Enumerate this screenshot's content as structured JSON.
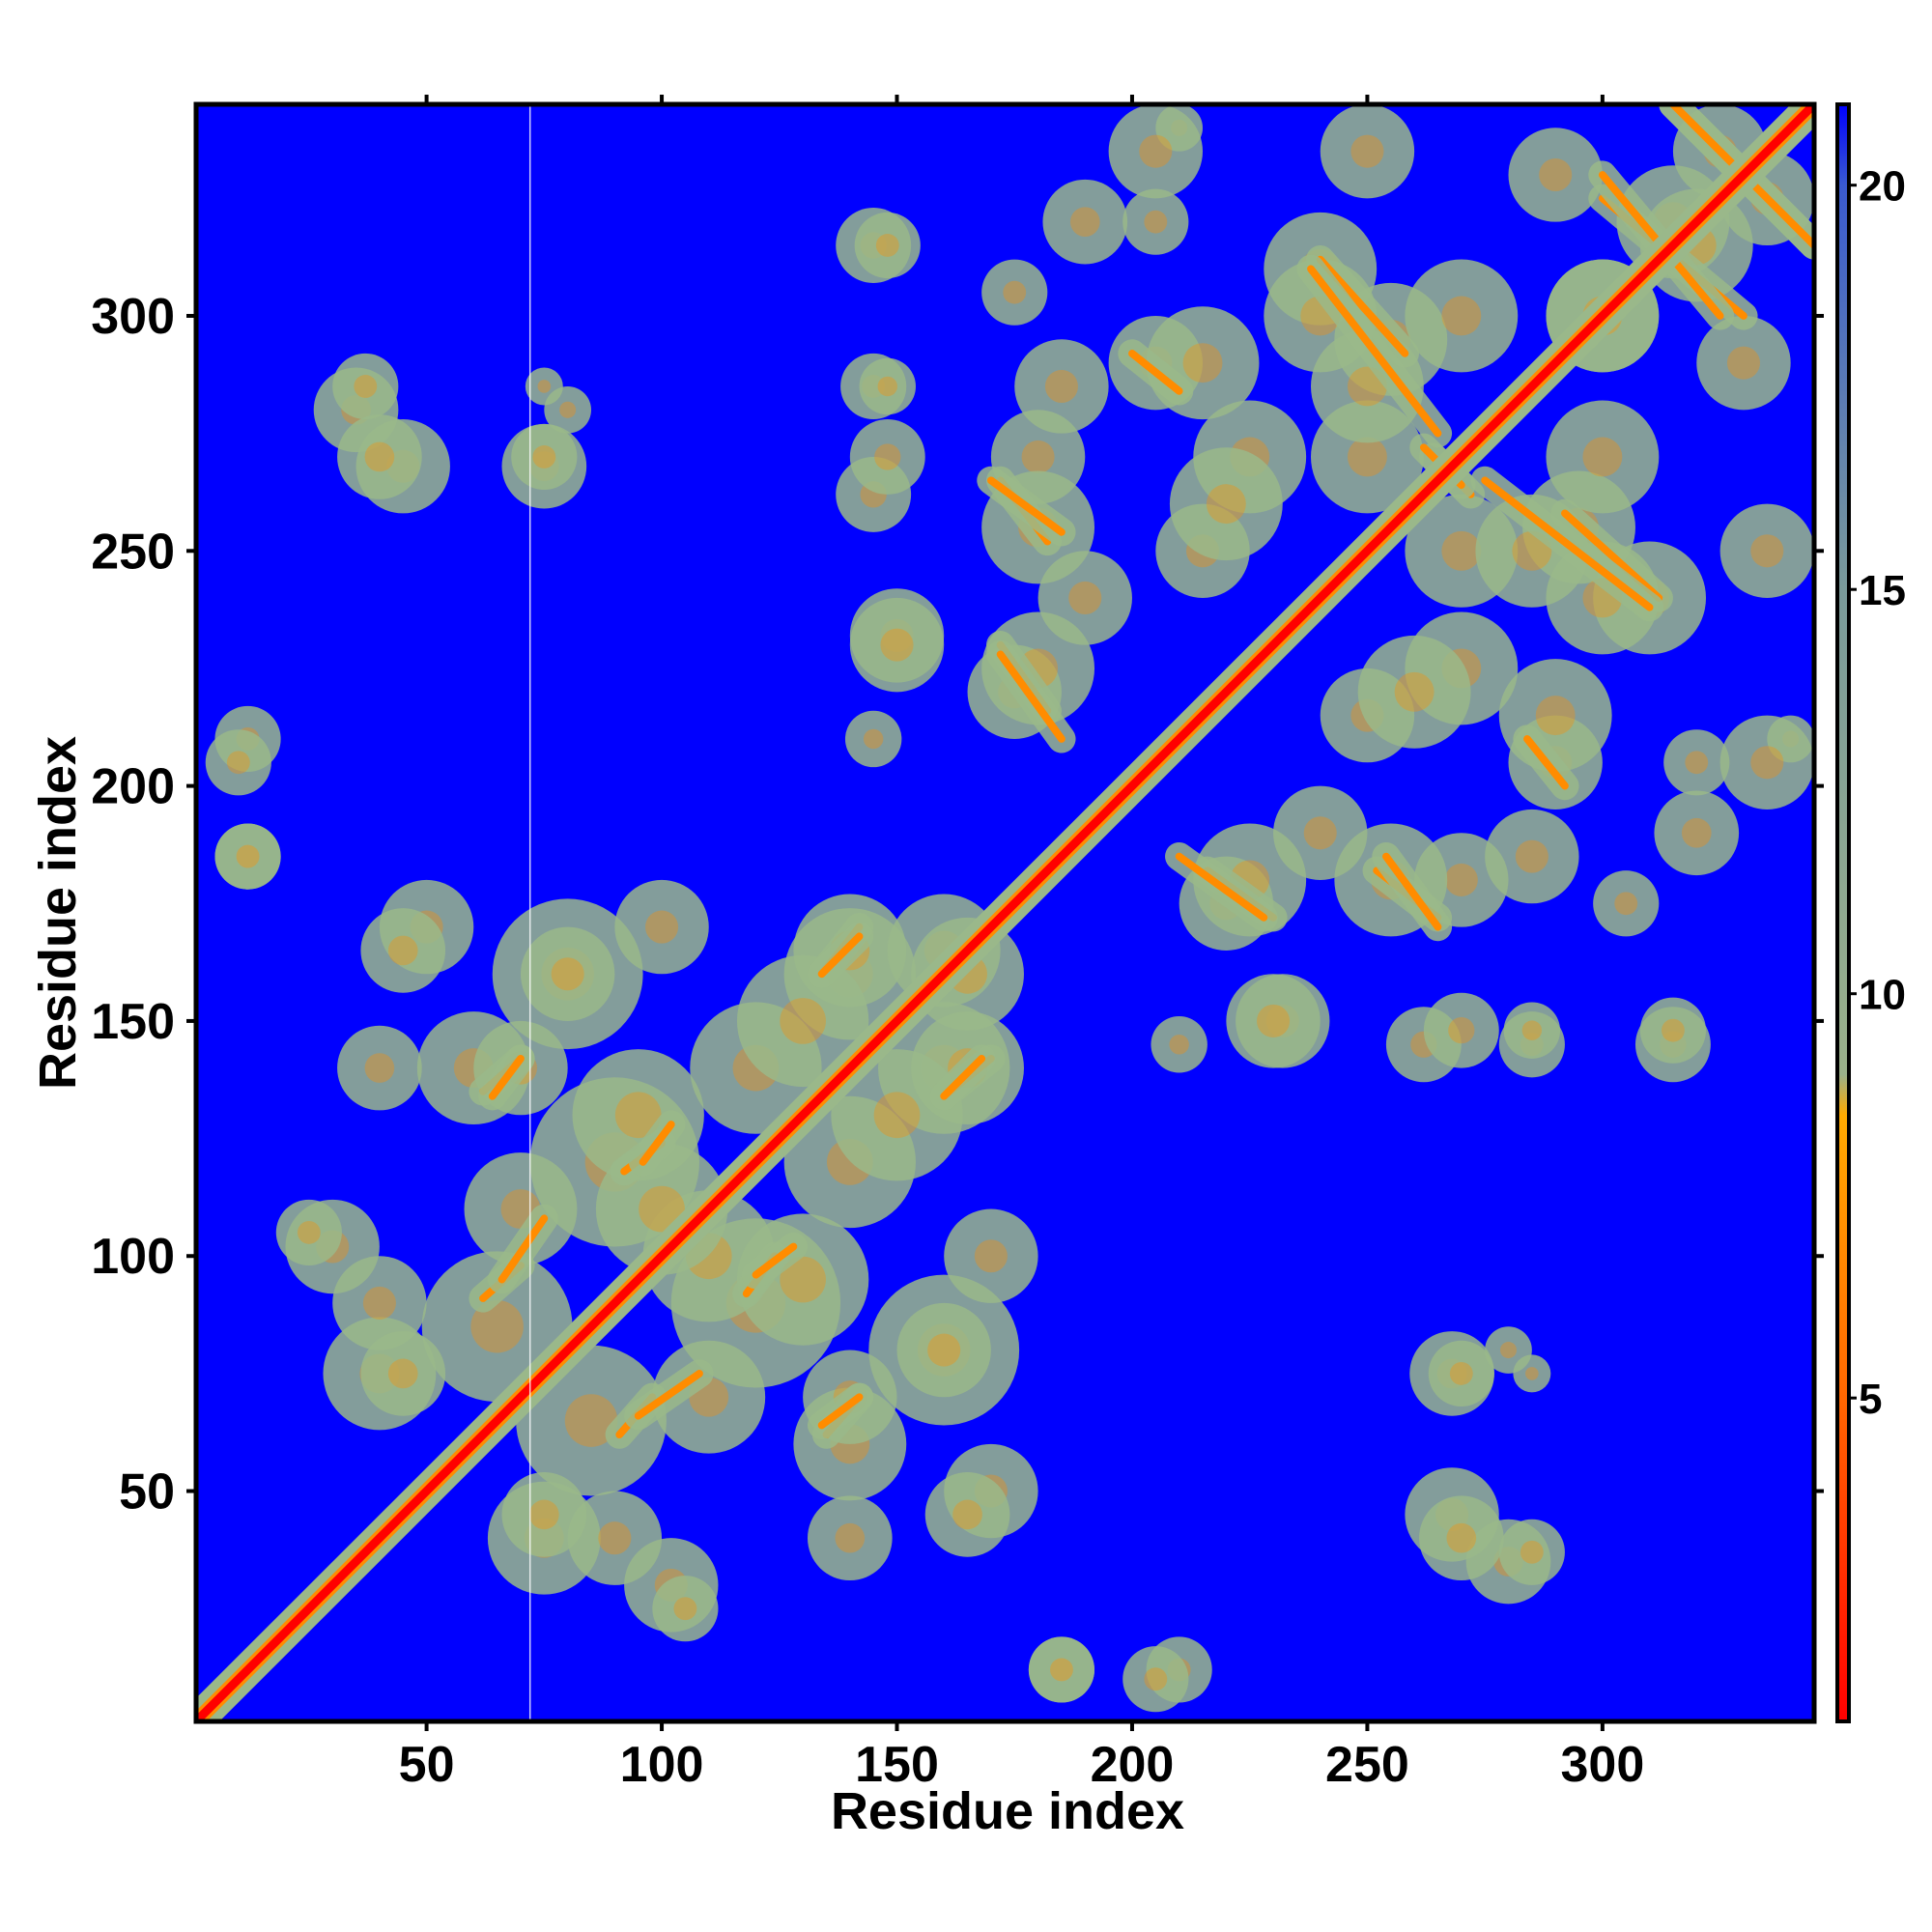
{
  "chart_data": {
    "type": "heatmap",
    "title": "",
    "xlabel": "Residue index",
    "ylabel": "Residue index",
    "xlim": [
      1,
      345
    ],
    "ylim": [
      1,
      345
    ],
    "x_ticks": [
      50,
      100,
      150,
      200,
      250,
      300
    ],
    "y_ticks": [
      50,
      100,
      150,
      200,
      250,
      300
    ],
    "grid": false,
    "legend": "colorbar-right",
    "colorbar": {
      "ticks": [
        5,
        10,
        15,
        20
      ],
      "range": [
        1,
        21
      ],
      "stops": [
        {
          "value": 1,
          "color": "#ff0000"
        },
        {
          "value": 5,
          "color": "#ff6600"
        },
        {
          "value": 8.5,
          "color": "#ffaa00"
        },
        {
          "value": 9,
          "color": "#9ab08a"
        },
        {
          "value": 15,
          "color": "#7a9a9a"
        },
        {
          "value": 20,
          "color": "#3a5ad0"
        },
        {
          "value": 21,
          "color": "#0000ff"
        }
      ]
    },
    "background_color": "#0000ff",
    "diagonal_color": "#ff0000",
    "contact_color": "#9ab88a",
    "highlight_color": "#ff8c00",
    "contact_blobs": [
      {
        "x": 12,
        "y": 210,
        "r": 7
      },
      {
        "x": 12,
        "y": 185,
        "r": 7
      },
      {
        "x": 35,
        "y": 280,
        "r": 9
      },
      {
        "x": 45,
        "y": 268,
        "r": 10
      },
      {
        "x": 80,
        "y": 280,
        "r": 5
      },
      {
        "x": 75,
        "y": 268,
        "r": 9
      },
      {
        "x": 30,
        "y": 102,
        "r": 10
      },
      {
        "x": 60,
        "y": 140,
        "r": 12
      },
      {
        "x": 50,
        "y": 170,
        "r": 10
      },
      {
        "x": 80,
        "y": 160,
        "r": 16
      },
      {
        "x": 100,
        "y": 170,
        "r": 10
      },
      {
        "x": 40,
        "y": 75,
        "r": 12
      },
      {
        "x": 65,
        "y": 85,
        "r": 16
      },
      {
        "x": 90,
        "y": 120,
        "r": 18
      },
      {
        "x": 110,
        "y": 100,
        "r": 14
      },
      {
        "x": 120,
        "y": 140,
        "r": 14
      },
      {
        "x": 130,
        "y": 95,
        "r": 14
      },
      {
        "x": 140,
        "y": 160,
        "r": 14
      },
      {
        "x": 150,
        "y": 130,
        "r": 14
      },
      {
        "x": 160,
        "y": 165,
        "r": 12
      },
      {
        "x": 165,
        "y": 140,
        "r": 12
      },
      {
        "x": 110,
        "y": 70,
        "r": 12
      },
      {
        "x": 140,
        "y": 70,
        "r": 10
      },
      {
        "x": 160,
        "y": 80,
        "r": 10
      },
      {
        "x": 90,
        "y": 40,
        "r": 10
      },
      {
        "x": 105,
        "y": 25,
        "r": 7
      },
      {
        "x": 140,
        "y": 40,
        "r": 9
      },
      {
        "x": 165,
        "y": 45,
        "r": 9
      },
      {
        "x": 75,
        "y": 45,
        "r": 9
      },
      {
        "x": 145,
        "y": 315,
        "r": 8
      },
      {
        "x": 145,
        "y": 285,
        "r": 7
      },
      {
        "x": 145,
        "y": 262,
        "r": 8
      },
      {
        "x": 150,
        "y": 232,
        "r": 10
      },
      {
        "x": 145,
        "y": 210,
        "r": 6
      },
      {
        "x": 175,
        "y": 305,
        "r": 7
      },
      {
        "x": 180,
        "y": 270,
        "r": 10
      },
      {
        "x": 175,
        "y": 220,
        "r": 10
      },
      {
        "x": 190,
        "y": 240,
        "r": 10
      },
      {
        "x": 205,
        "y": 290,
        "r": 10
      },
      {
        "x": 205,
        "y": 320,
        "r": 7
      },
      {
        "x": 210,
        "y": 340,
        "r": 5
      },
      {
        "x": 215,
        "y": 250,
        "r": 10
      },
      {
        "x": 225,
        "y": 270,
        "r": 12
      },
      {
        "x": 240,
        "y": 310,
        "r": 12
      },
      {
        "x": 255,
        "y": 295,
        "r": 12
      },
      {
        "x": 270,
        "y": 250,
        "r": 12
      },
      {
        "x": 260,
        "y": 220,
        "r": 12
      },
      {
        "x": 290,
        "y": 215,
        "r": 12
      },
      {
        "x": 285,
        "y": 250,
        "r": 12
      },
      {
        "x": 300,
        "y": 240,
        "r": 12
      },
      {
        "x": 300,
        "y": 270,
        "r": 12
      },
      {
        "x": 300,
        "y": 300,
        "r": 12
      },
      {
        "x": 315,
        "y": 320,
        "r": 12
      },
      {
        "x": 325,
        "y": 335,
        "r": 10
      },
      {
        "x": 330,
        "y": 290,
        "r": 10
      },
      {
        "x": 335,
        "y": 250,
        "r": 10
      },
      {
        "x": 335,
        "y": 205,
        "r": 10
      },
      {
        "x": 320,
        "y": 190,
        "r": 9
      },
      {
        "x": 225,
        "y": 180,
        "r": 12
      },
      {
        "x": 255,
        "y": 180,
        "r": 12
      },
      {
        "x": 285,
        "y": 185,
        "r": 10
      },
      {
        "x": 230,
        "y": 150,
        "r": 10
      },
      {
        "x": 270,
        "y": 148,
        "r": 8
      },
      {
        "x": 285,
        "y": 148,
        "r": 6
      },
      {
        "x": 315,
        "y": 148,
        "r": 7
      },
      {
        "x": 205,
        "y": 10,
        "r": 7
      },
      {
        "x": 185,
        "y": 12,
        "r": 7
      },
      {
        "x": 270,
        "y": 40,
        "r": 9
      },
      {
        "x": 285,
        "y": 37,
        "r": 7
      },
      {
        "x": 270,
        "y": 75,
        "r": 7
      },
      {
        "x": 285,
        "y": 75,
        "r": 4
      }
    ],
    "contact_streaks": [
      {
        "x1": 62,
        "y1": 135,
        "x2": 70,
        "y2": 142
      },
      {
        "x1": 62,
        "y1": 91,
        "x2": 70,
        "y2": 98
      },
      {
        "x1": 92,
        "y1": 118,
        "x2": 100,
        "y2": 124
      },
      {
        "x1": 95,
        "y1": 66,
        "x2": 108,
        "y2": 75
      },
      {
        "x1": 120,
        "y1": 96,
        "x2": 128,
        "y2": 102
      },
      {
        "x1": 134,
        "y1": 160,
        "x2": 142,
        "y2": 170
      },
      {
        "x1": 134,
        "y1": 64,
        "x2": 142,
        "y2": 70
      },
      {
        "x1": 160,
        "y1": 134,
        "x2": 168,
        "y2": 142
      },
      {
        "x1": 172,
        "y1": 265,
        "x2": 182,
        "y2": 252
      },
      {
        "x1": 172,
        "y1": 230,
        "x2": 182,
        "y2": 216
      },
      {
        "x1": 210,
        "y1": 185,
        "x2": 228,
        "y2": 172
      },
      {
        "x1": 240,
        "y1": 312,
        "x2": 258,
        "y2": 292
      },
      {
        "x1": 254,
        "y1": 185,
        "x2": 265,
        "y2": 170
      },
      {
        "x1": 264,
        "y1": 270,
        "x2": 272,
        "y2": 262
      },
      {
        "x1": 275,
        "y1": 265,
        "x2": 310,
        "y2": 238
      },
      {
        "x1": 300,
        "y1": 325,
        "x2": 330,
        "y2": 300
      },
      {
        "x1": 315,
        "y1": 345,
        "x2": 345,
        "y2": 315
      },
      {
        "x1": 284,
        "y1": 210,
        "x2": 292,
        "y2": 200
      }
    ]
  }
}
